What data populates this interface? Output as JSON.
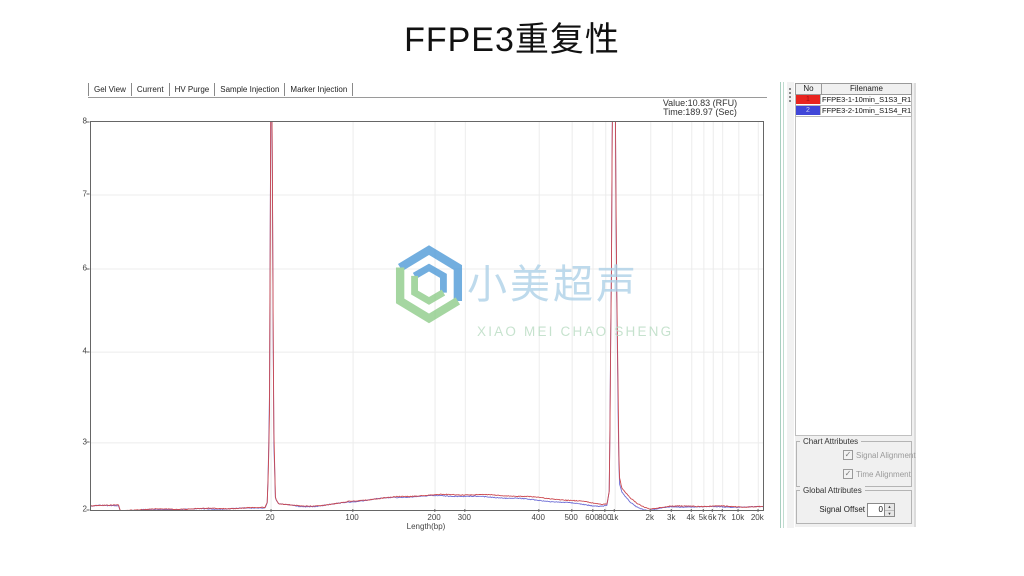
{
  "page": {
    "title": "FFPE3重复性"
  },
  "tabs": [
    {
      "label": "Gel View"
    },
    {
      "label": "Current"
    },
    {
      "label": "HV Purge"
    },
    {
      "label": "Sample Injection"
    },
    {
      "label": "Marker Injection"
    }
  ],
  "readout": {
    "value_line": "Value:10.83 (RFU)",
    "time_line": "Time:189.97 (Sec)"
  },
  "watermark": {
    "cn": "小美超声",
    "en": "XIAO MEI CHAO SHENG",
    "logo_blue": "#4f9bd8",
    "logo_green": "#8fcc8a"
  },
  "file_table": {
    "columns": [
      "No",
      "Filename"
    ],
    "rows": [
      {
        "no": "1",
        "color": "#e8241f",
        "num_color": "#a31212",
        "filename": "FFPE3-1-10min_S1S3_R1"
      },
      {
        "no": "2",
        "color": "#4046d8",
        "num_color": "#c8cdf2",
        "filename": "FFPE3-2-10min_S1S4_R1"
      }
    ]
  },
  "chart_attributes": {
    "label": "Chart Attributes",
    "checkboxes": [
      {
        "label": "Signal Alignment",
        "checked": true,
        "check_glyph": "✓"
      },
      {
        "label": "Time Alignment",
        "checked": true,
        "check_glyph": "✓"
      }
    ]
  },
  "global_attributes": {
    "label": "Global Attributes",
    "signal_offset_label": "Signal Offset",
    "signal_offset_value": "0",
    "spin_up_glyph": "▲",
    "spin_down_glyph": "▼"
  },
  "chart_data": {
    "type": "line",
    "title": "",
    "xlabel": "Length(bp)",
    "ylabel": "",
    "x_axis_note": "non-linear fragment-size axis; tick positions as fraction of plot width",
    "x_ticks": [
      {
        "label": "20",
        "pos": 0.268
      },
      {
        "label": "100",
        "pos": 0.39
      },
      {
        "label": "200",
        "pos": 0.512
      },
      {
        "label": "300",
        "pos": 0.557
      },
      {
        "label": "400",
        "pos": 0.667
      },
      {
        "label": "500",
        "pos": 0.716
      },
      {
        "label": "600",
        "pos": 0.747
      },
      {
        "label": "800",
        "pos": 0.766
      },
      {
        "label": "1k",
        "pos": 0.78
      },
      {
        "label": "2k",
        "pos": 0.833
      },
      {
        "label": "3k",
        "pos": 0.865
      },
      {
        "label": "4k",
        "pos": 0.894
      },
      {
        "label": "5k",
        "pos": 0.912
      },
      {
        "label": "6k",
        "pos": 0.926
      },
      {
        "label": "7k",
        "pos": 0.94
      },
      {
        "label": "10k",
        "pos": 0.964
      },
      {
        "label": "20k",
        "pos": 0.993
      }
    ],
    "y_ticks": [
      {
        "label": "8",
        "value": 8,
        "pos": 0.0
      },
      {
        "label": "7",
        "value": 7,
        "pos": 0.188
      },
      {
        "label": "6",
        "value": 6,
        "pos": 0.379
      },
      {
        "label": "4",
        "value": 4,
        "pos": 0.593
      },
      {
        "label": "3",
        "value": 3,
        "pos": 0.827
      },
      {
        "label": "2",
        "value": 2,
        "pos": 1.0
      }
    ],
    "annotations": [
      "Value:10.83 (RFU)",
      "Time:189.97 (Sec)"
    ],
    "peaks": [
      {
        "x_frac": 0.268,
        "note": "marker peak at 20 bp, clipped at top"
      },
      {
        "x_frac": 0.778,
        "note": "marker peak near 1k, clipped at top"
      }
    ],
    "grid_color": "#ececec",
    "series": [
      {
        "name": "FFPE3-1-10min_S1S3_R1",
        "color": "#cc4a50",
        "anchors": [
          [
            0,
            2.065
          ],
          [
            0.012,
            2.07
          ],
          [
            0.025,
            2.065
          ],
          [
            0.038,
            2.072
          ],
          [
            0.041,
            2.075
          ],
          [
            0.044,
            1.975
          ],
          [
            0.05,
            1.99
          ],
          [
            0.06,
            2.005
          ],
          [
            0.09,
            2.01
          ],
          [
            0.13,
            2.015
          ],
          [
            0.17,
            2.02
          ],
          [
            0.21,
            2.025
          ],
          [
            0.245,
            2.03
          ],
          [
            0.259,
            2.04
          ],
          [
            0.2625,
            2.12
          ],
          [
            0.2655,
            3.2
          ],
          [
            0.2675,
            8.6
          ],
          [
            0.2695,
            8.6
          ],
          [
            0.2715,
            3.4
          ],
          [
            0.2745,
            2.18
          ],
          [
            0.279,
            2.1
          ],
          [
            0.285,
            2.09
          ],
          [
            0.295,
            2.075
          ],
          [
            0.31,
            2.055
          ],
          [
            0.33,
            2.06
          ],
          [
            0.36,
            2.09
          ],
          [
            0.39,
            2.13
          ],
          [
            0.42,
            2.165
          ],
          [
            0.45,
            2.19
          ],
          [
            0.48,
            2.21
          ],
          [
            0.51,
            2.225
          ],
          [
            0.54,
            2.23
          ],
          [
            0.57,
            2.228
          ],
          [
            0.6,
            2.22
          ],
          [
            0.63,
            2.21
          ],
          [
            0.66,
            2.19
          ],
          [
            0.69,
            2.165
          ],
          [
            0.715,
            2.14
          ],
          [
            0.735,
            2.12
          ],
          [
            0.75,
            2.1
          ],
          [
            0.762,
            2.09
          ],
          [
            0.768,
            2.1
          ],
          [
            0.7715,
            2.3
          ],
          [
            0.774,
            5
          ],
          [
            0.776,
            8.6
          ],
          [
            0.78,
            8.6
          ],
          [
            0.783,
            4.6
          ],
          [
            0.786,
            2.5
          ],
          [
            0.79,
            2.32
          ],
          [
            0.795,
            2.26
          ],
          [
            0.802,
            2.18
          ],
          [
            0.812,
            2.1
          ],
          [
            0.822,
            2.05
          ],
          [
            0.832,
            2.02
          ],
          [
            0.845,
            2.035
          ],
          [
            0.86,
            2.05
          ],
          [
            0.89,
            2.06
          ],
          [
            0.93,
            2.055
          ],
          [
            0.97,
            2.05
          ],
          [
            1,
            2.05
          ]
        ]
      },
      {
        "name": "FFPE3-2-10min_S1S4_R1",
        "color": "#6e6ed6",
        "anchors": [
          [
            0,
            2.06
          ],
          [
            0.012,
            2.065
          ],
          [
            0.025,
            2.06
          ],
          [
            0.038,
            2.066
          ],
          [
            0.041,
            2.07
          ],
          [
            0.044,
            1.97
          ],
          [
            0.05,
            1.985
          ],
          [
            0.06,
            2
          ],
          [
            0.09,
            2.005
          ],
          [
            0.13,
            2.01
          ],
          [
            0.17,
            2.015
          ],
          [
            0.21,
            2.02
          ],
          [
            0.245,
            2.028
          ],
          [
            0.259,
            2.038
          ],
          [
            0.2625,
            2.12
          ],
          [
            0.2655,
            3.4
          ],
          [
            0.2675,
            8.6
          ],
          [
            0.2695,
            8.6
          ],
          [
            0.2715,
            3.2
          ],
          [
            0.2745,
            2.17
          ],
          [
            0.279,
            2.095
          ],
          [
            0.285,
            2.085
          ],
          [
            0.295,
            2.07
          ],
          [
            0.31,
            2.05
          ],
          [
            0.33,
            2.055
          ],
          [
            0.36,
            2.085
          ],
          [
            0.39,
            2.125
          ],
          [
            0.42,
            2.16
          ],
          [
            0.45,
            2.185
          ],
          [
            0.48,
            2.2
          ],
          [
            0.51,
            2.21
          ],
          [
            0.54,
            2.21
          ],
          [
            0.57,
            2.2
          ],
          [
            0.6,
            2.19
          ],
          [
            0.63,
            2.175
          ],
          [
            0.66,
            2.15
          ],
          [
            0.69,
            2.125
          ],
          [
            0.715,
            2.1
          ],
          [
            0.735,
            2.08
          ],
          [
            0.75,
            2.065
          ],
          [
            0.762,
            2.06
          ],
          [
            0.768,
            2.075
          ],
          [
            0.7715,
            2.3
          ],
          [
            0.774,
            5.2
          ],
          [
            0.776,
            8.6
          ],
          [
            0.78,
            8.6
          ],
          [
            0.783,
            4.2
          ],
          [
            0.786,
            2.4
          ],
          [
            0.79,
            2.26
          ],
          [
            0.795,
            2.2
          ],
          [
            0.802,
            2.12
          ],
          [
            0.812,
            2.05
          ],
          [
            0.822,
            2.01
          ],
          [
            0.832,
            1.995
          ],
          [
            0.845,
            2.02
          ],
          [
            0.86,
            2.04
          ],
          [
            0.89,
            2.05
          ],
          [
            0.93,
            2.045
          ],
          [
            0.97,
            2.045
          ],
          [
            1,
            2.045
          ]
        ]
      }
    ]
  }
}
